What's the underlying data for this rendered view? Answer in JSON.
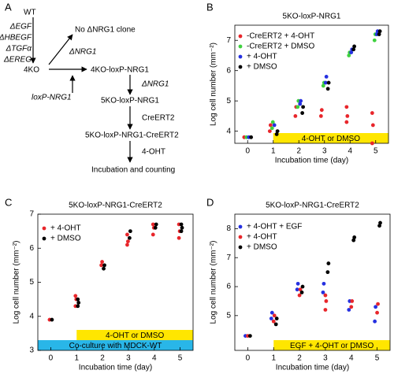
{
  "diagram": {
    "label": "A",
    "nodes": [
      "WT",
      "ΔEGF",
      "ΔHBEGF",
      "ΔTGFα",
      "ΔEREG",
      "4KO",
      "No ΔNRG1 clone",
      "ΔNRG1",
      "loxP-NRG1",
      "4KO-loxP-NRG1",
      "ΔNRG1",
      "5KO-loxP-NRG1",
      "CreERT2",
      "5KO-loxP-NRG1-CreERT2",
      "4-OHT",
      "Incubation and counting"
    ]
  },
  "chart_data": [
    {
      "type": "scatter",
      "label": "B",
      "title": "5KO-loxP-NRG1",
      "xlabel": "Incubation time (day)",
      "ylabel": "Log cell number (mm⁻²)",
      "xlim": [
        -0.5,
        5.5
      ],
      "xticks": [
        0,
        1,
        2,
        3,
        4,
        5
      ],
      "ylim": [
        3.6,
        7.5
      ],
      "yticks": [
        4,
        5,
        6,
        7
      ],
      "annotations": [
        {
          "text": "4-OHT or DMSO",
          "color": "#ffe600",
          "from": 1,
          "to": 5.5
        }
      ],
      "series": [
        {
          "name": "-CreERT2 + 4-OHT",
          "color": "#e8262b",
          "x": [
            0,
            1,
            1,
            2,
            2,
            3,
            3,
            4,
            4,
            4,
            5,
            5,
            5
          ],
          "values": [
            3.8,
            4.0,
            4.2,
            4.5,
            4.8,
            4.5,
            4.7,
            4.3,
            4.5,
            4.8,
            3.6,
            4.2,
            4.6
          ]
        },
        {
          "name": "-CreERT2 + DMSO",
          "color": "#3ed13e",
          "x": [
            0,
            1,
            1,
            2,
            2,
            3,
            3,
            4,
            4,
            5,
            5
          ],
          "values": [
            3.8,
            4.1,
            4.3,
            4.8,
            5.0,
            5.5,
            5.6,
            6.5,
            6.6,
            7.0,
            7.2
          ]
        },
        {
          "name": "+ 4-OHT",
          "color": "#2530e0",
          "x": [
            0,
            1,
            2,
            2,
            3,
            3,
            4,
            4,
            5,
            5
          ],
          "values": [
            3.8,
            4.2,
            4.9,
            5.0,
            5.6,
            5.8,
            6.6,
            6.7,
            7.2,
            7.3
          ]
        },
        {
          "name": "+ DMSO",
          "color": "#000000",
          "x": [
            0,
            1,
            1,
            2,
            2,
            3,
            3,
            4,
            4,
            5,
            5
          ],
          "values": [
            3.8,
            3.9,
            4.0,
            4.6,
            4.8,
            5.4,
            5.6,
            6.7,
            6.8,
            7.2,
            7.3
          ]
        }
      ]
    },
    {
      "type": "scatter",
      "label": "C",
      "title": "5KO-loxP-NRG1-CreERT2",
      "xlabel": "Incubation time (day)",
      "ylabel": "Log cell number (mm⁻²)",
      "xlim": [
        -0.5,
        5.5
      ],
      "xticks": [
        0,
        1,
        2,
        3,
        4,
        5
      ],
      "ylim": [
        3,
        7
      ],
      "yticks": [
        3,
        4,
        5,
        6,
        7
      ],
      "annotations": [
        {
          "text": "Co-culture with MDCK-WT",
          "color": "#29b6e8",
          "from": -0.5,
          "to": 5.5
        },
        {
          "text": "4-OHT or DMSO",
          "color": "#ffe600",
          "from": 1,
          "to": 5.5
        }
      ],
      "series": [
        {
          "name": "+ 4-OHT",
          "color": "#e8262b",
          "x": [
            0,
            1,
            1,
            1,
            2,
            2,
            3,
            3,
            3,
            4,
            4,
            4,
            5,
            5,
            5
          ],
          "values": [
            3.9,
            4.3,
            4.5,
            4.6,
            5.5,
            5.6,
            6.1,
            6.2,
            6.4,
            6.4,
            6.6,
            6.7,
            6.3,
            6.5,
            6.7
          ]
        },
        {
          "name": "+ DMSO",
          "color": "#000000",
          "x": [
            0,
            1,
            1,
            1,
            2,
            2,
            3,
            3,
            4,
            4,
            5,
            5,
            5
          ],
          "values": [
            3.9,
            4.3,
            4.4,
            4.5,
            5.4,
            5.5,
            6.3,
            6.5,
            6.6,
            6.7,
            6.5,
            6.6,
            6.7
          ]
        }
      ]
    },
    {
      "type": "scatter",
      "label": "D",
      "title": "5KO-loxP-NRG1-CreERT2",
      "xlabel": "Incubation time (day)",
      "ylabel": "Log cell number (mm⁻²)",
      "xlim": [
        -0.5,
        5.5
      ],
      "xticks": [
        0,
        1,
        2,
        3,
        4,
        5
      ],
      "ylim": [
        3.8,
        8.5
      ],
      "yticks": [
        5,
        6,
        7,
        8
      ],
      "annotations": [
        {
          "text": "EGF + 4-OHT or DMSO",
          "color": "#ffe600",
          "from": 1,
          "to": 5.5
        }
      ],
      "series": [
        {
          "name": "+ 4-OHT + EGF",
          "color": "#2530e0",
          "x": [
            0,
            1,
            1,
            2,
            2,
            3,
            3,
            4,
            4,
            5,
            5
          ],
          "values": [
            4.3,
            4.9,
            5.1,
            5.9,
            6.1,
            5.8,
            6.1,
            5.2,
            5.5,
            4.8,
            5.3
          ]
        },
        {
          "name": "+ 4-OHT",
          "color": "#e8262b",
          "x": [
            0,
            1,
            1,
            2,
            2,
            3,
            3,
            3,
            4,
            4,
            5,
            5
          ],
          "values": [
            4.3,
            4.8,
            5.0,
            5.7,
            5.9,
            5.2,
            5.5,
            5.7,
            5.3,
            5.5,
            5.1,
            5.4
          ]
        },
        {
          "name": "+ DMSO",
          "color": "#000000",
          "x": [
            0,
            1,
            1,
            2,
            2,
            3,
            3,
            4,
            4,
            5,
            5
          ],
          "values": [
            4.3,
            4.7,
            4.9,
            5.8,
            6.0,
            6.5,
            6.8,
            7.6,
            7.7,
            8.1,
            8.2
          ]
        }
      ]
    }
  ]
}
